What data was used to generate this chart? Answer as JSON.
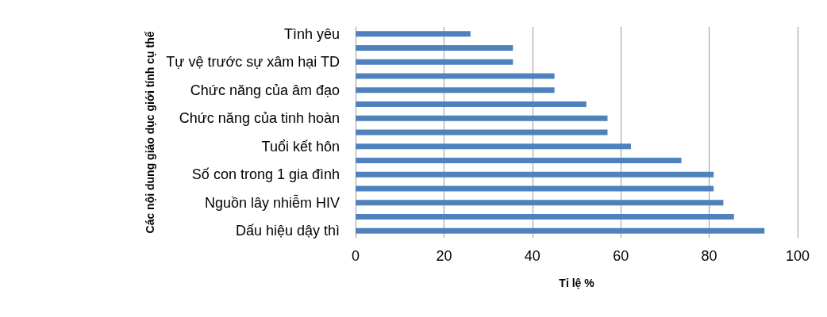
{
  "chart_data": {
    "type": "bar",
    "orientation": "horizontal",
    "xlabel": "Tỉ lệ %",
    "ylabel": "Các nội dung giáo dục giới tính cụ thể",
    "categories": [
      "Tình yêu",
      null,
      "Tự vệ trước sự xâm hại TD",
      null,
      "Chức năng của âm đạo",
      null,
      "Chức năng của tinh hoàn",
      null,
      "Tuổi kết hôn",
      null,
      "Số con trong 1 gia đình",
      null,
      "Nguồn lây nhiễm HIV",
      null,
      "Dấu hiệu dậy thì"
    ],
    "values": [
      26,
      35.6,
      35.6,
      45,
      45,
      52.2,
      57,
      57,
      62.3,
      73.7,
      81,
      81,
      83.2,
      85.6,
      92.5
    ],
    "color": "#4f81bd",
    "xlim": [
      0,
      100
    ],
    "xticks": [
      0,
      20,
      40,
      60,
      80,
      100
    ],
    "grid": "x"
  }
}
